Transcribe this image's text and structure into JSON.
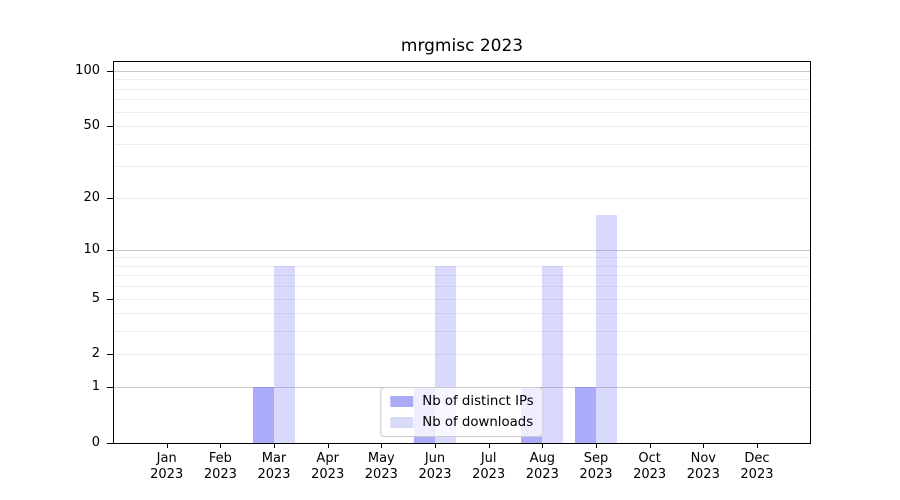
{
  "chart_data": {
    "type": "bar",
    "title": "mrgmisc 2023",
    "xlabel": "",
    "ylabel": "",
    "year": "2023",
    "categories": [
      "Jan",
      "Feb",
      "Mar",
      "Apr",
      "May",
      "Jun",
      "Jul",
      "Aug",
      "Sep",
      "Oct",
      "Nov",
      "Dec"
    ],
    "series": [
      {
        "key": "distinct-ips",
        "name": "Nb of distinct IPs",
        "values": [
          0,
          0,
          1,
          0,
          0,
          1,
          0,
          1,
          1,
          0,
          0,
          0
        ],
        "color": "rgba(120,124,246,0.63)",
        "legend_color": "#a9abf5"
      },
      {
        "key": "downloads",
        "name": "Nb of downloads",
        "values": [
          0,
          0,
          8,
          0,
          0,
          8,
          0,
          8,
          16,
          0,
          0,
          0
        ],
        "color": "rgba(120,124,246,0.29)",
        "legend_color": "#d8daf9"
      }
    ],
    "yscale": "log1p",
    "ylim": [
      0,
      112
    ],
    "yticks": [
      0,
      1,
      2,
      5,
      10,
      20,
      50,
      100
    ],
    "grid": {
      "minor": [
        2,
        3,
        4,
        5,
        6,
        7,
        8,
        9,
        20,
        30,
        40,
        50,
        60,
        70,
        80,
        90
      ],
      "major": [
        1,
        10,
        100
      ]
    },
    "legend_position": "lower center",
    "grid_on": true
  }
}
